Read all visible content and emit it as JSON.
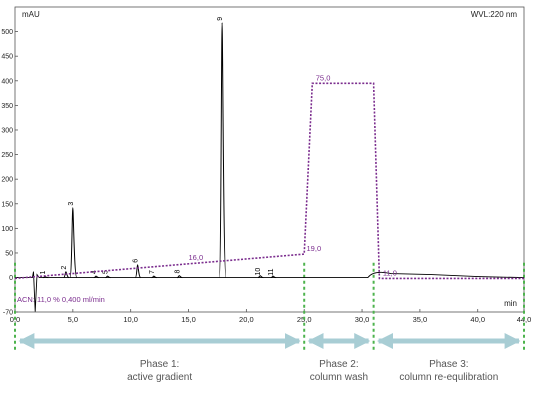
{
  "chart_data": {
    "type": "line",
    "ylabel": "mAU",
    "xlabel": "min",
    "detector_label": "WVL:220 nm",
    "xlim": [
      0,
      44
    ],
    "ylim": [
      -70,
      550
    ],
    "x_ticks": [
      0,
      5,
      10,
      15,
      20,
      25,
      30,
      35,
      40,
      44
    ],
    "x_tick_labels": [
      "0,0",
      "5,0",
      "10,0",
      "15,0",
      "20,0",
      "25,0",
      "30,0",
      "35,0",
      "40,0",
      "44,0"
    ],
    "y_ticks": [
      -70,
      0,
      50,
      100,
      150,
      200,
      250,
      300,
      350,
      400,
      450,
      500
    ],
    "y_tick_labels": [
      "-70",
      "0",
      "50",
      "100",
      "150",
      "200",
      "250",
      "300",
      "350",
      "400",
      "450",
      "500"
    ],
    "chromatogram": {
      "baseline": 0,
      "peaks": [
        {
          "label": "1",
          "rt": 2.6,
          "height": 2
        },
        {
          "label": "2",
          "rt": 4.4,
          "height": 12
        },
        {
          "label": "3",
          "rt": 5.0,
          "height": 142
        },
        {
          "label": "4",
          "rt": 7.0,
          "height": 3
        },
        {
          "label": "5",
          "rt": 8.0,
          "height": 3
        },
        {
          "label": "6",
          "rt": 10.6,
          "height": 26
        },
        {
          "label": "7",
          "rt": 12.0,
          "height": 3
        },
        {
          "label": "8",
          "rt": 14.2,
          "height": 4
        },
        {
          "label": "9",
          "rt": 17.9,
          "height": 518
        },
        {
          "label": "10",
          "rt": 21.2,
          "height": 4
        },
        {
          "label": "11",
          "rt": 22.3,
          "height": 3
        }
      ]
    },
    "gradient": {
      "points": [
        [
          0,
          11
        ],
        [
          25.0,
          19
        ],
        [
          25.7,
          75
        ],
        [
          31.0,
          75
        ],
        [
          31.5,
          11
        ],
        [
          44,
          11
        ]
      ],
      "labels": [
        {
          "text": "16,0",
          "x": 15.0,
          "y": 16
        },
        {
          "text": "19,0",
          "x": 25.2,
          "y": 19
        },
        {
          "text": "75,0",
          "x": 26.0,
          "y": 75
        },
        {
          "text": "11,0",
          "x": 31.8,
          "y": 11
        }
      ],
      "info_label": "ACN: 11,0 % 0,400 ml/min",
      "color": "#7b2d8e"
    },
    "phases": [
      {
        "label_line1": "Phase 1:",
        "label_line2": "active gradient",
        "start": 0,
        "end": 25
      },
      {
        "label_line1": "Phase 2:",
        "label_line2": "column wash",
        "start": 25,
        "end": 31
      },
      {
        "label_line1": "Phase 3:",
        "label_line2": "column re-equlibration",
        "start": 31,
        "end": 44
      }
    ],
    "colors": {
      "trace": "#000000",
      "gradient": "#7b2d8e",
      "phase_lines": "#4db34d",
      "arrows": "#a8cdd4",
      "phase_text": "#555555"
    }
  }
}
